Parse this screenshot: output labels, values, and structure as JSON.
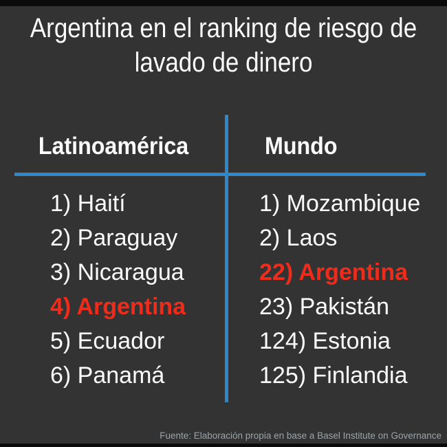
{
  "title": {
    "line1": "Argentina en el ranking de riesgo de",
    "line2": "lavado de dinero"
  },
  "columns": [
    {
      "header": "Latinoamérica",
      "items": [
        {
          "text": "1) Haití",
          "rank": 1,
          "country": "Haití",
          "highlight": false
        },
        {
          "text": "2) Paraguay",
          "rank": 2,
          "country": "Paraguay",
          "highlight": false
        },
        {
          "text": "3) Nicaragua",
          "rank": 3,
          "country": "Nicaragua",
          "highlight": false
        },
        {
          "text": "4) Argentina",
          "rank": 4,
          "country": "Argentina",
          "highlight": true
        },
        {
          "text": "5) Ecuador",
          "rank": 5,
          "country": "Ecuador",
          "highlight": false
        },
        {
          "text": "6) Panamá",
          "rank": 6,
          "country": "Panamá",
          "highlight": false
        }
      ]
    },
    {
      "header": "Mundo",
      "items": [
        {
          "text": "1) Mozambique",
          "rank": 1,
          "country": "Mozambique",
          "highlight": false
        },
        {
          "text": "2) Laos",
          "rank": 2,
          "country": "Laos",
          "highlight": false
        },
        {
          "text": "22) Argentina",
          "rank": 22,
          "country": "Argentina",
          "highlight": true
        },
        {
          "text": "23) Pakistán",
          "rank": 23,
          "country": "Pakistán",
          "highlight": false
        },
        {
          "text": "124) Estonia",
          "rank": 124,
          "country": "Estonia",
          "highlight": false
        },
        {
          "text": "125) Finlandia",
          "rank": 125,
          "country": "Finlandia",
          "highlight": false
        }
      ]
    }
  ],
  "footer": {
    "source": "Fuente: Elaboración propia en base a Basel Institute on Governance"
  },
  "colors": {
    "background": "#333333",
    "edge_bars": "#0b0b0b",
    "accent_blue": "#2d87c8",
    "highlight_red": "#ee2c1c",
    "text_white": "#fbfbfb",
    "footer_gray": "#9aa4a9"
  },
  "chart_data": {
    "type": "table",
    "title": "Argentina en el ranking de riesgo de lavado de dinero",
    "columns": [
      "Latinoamérica",
      "Mundo"
    ],
    "series": [
      {
        "name": "Latinoamérica",
        "values": [
          {
            "rank": 1,
            "country": "Haití"
          },
          {
            "rank": 2,
            "country": "Paraguay"
          },
          {
            "rank": 3,
            "country": "Nicaragua"
          },
          {
            "rank": 4,
            "country": "Argentina"
          },
          {
            "rank": 5,
            "country": "Ecuador"
          },
          {
            "rank": 6,
            "country": "Panamá"
          }
        ]
      },
      {
        "name": "Mundo",
        "values": [
          {
            "rank": 1,
            "country": "Mozambique"
          },
          {
            "rank": 2,
            "country": "Laos"
          },
          {
            "rank": 22,
            "country": "Argentina"
          },
          {
            "rank": 23,
            "country": "Pakistán"
          },
          {
            "rank": 124,
            "country": "Estonia"
          },
          {
            "rank": 125,
            "country": "Finlandia"
          }
        ]
      }
    ],
    "highlighted_entry": "Argentina",
    "source": "Fuente: Elaboración propia en base a Basel Institute on Governance"
  }
}
